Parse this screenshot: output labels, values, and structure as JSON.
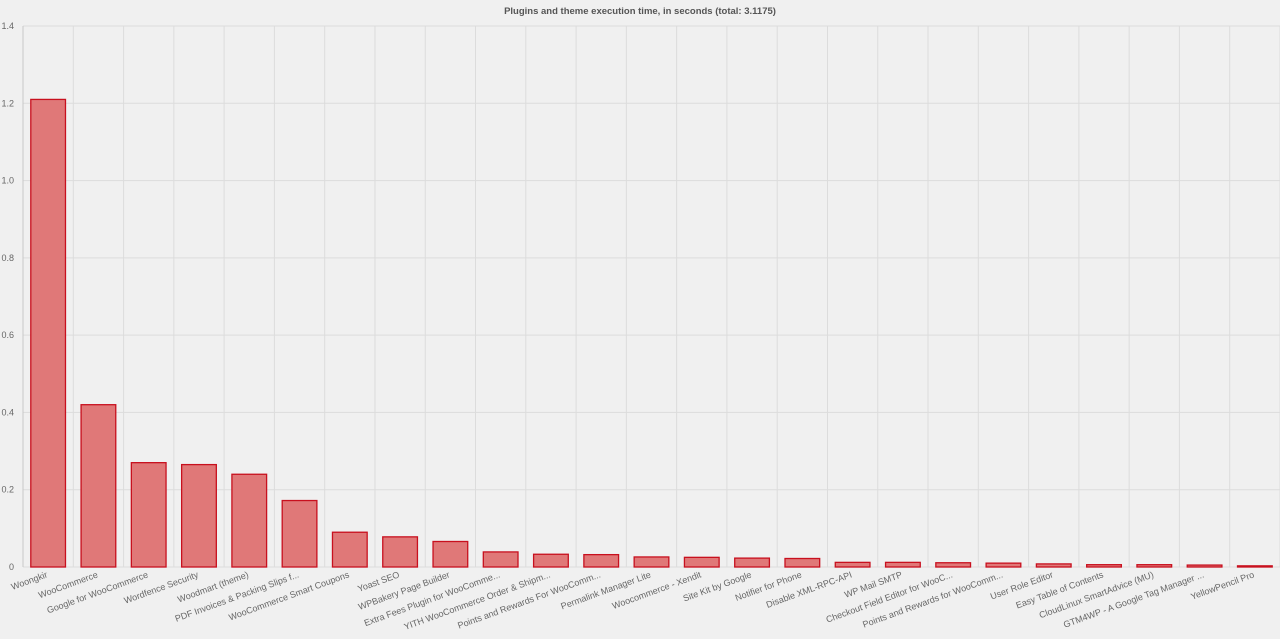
{
  "chart_data": {
    "type": "bar",
    "title": "Plugins and theme execution time, in seconds (total: 3.1175)",
    "xlabel": "",
    "ylabel": "",
    "ylim": [
      0,
      1.4
    ],
    "yticks": [
      "0",
      "0.2",
      "0.4",
      "0.6",
      "0.8",
      "1.0",
      "1.2",
      "1.4"
    ],
    "grid": true,
    "legend": "none",
    "categories": [
      "Woongkir",
      "WooCommerce",
      "Google for WooCommerce",
      "Wordfence Security",
      "Woodmart (theme)",
      "PDF Invoices & Packing Slips f...",
      "WooCommerce Smart Coupons",
      "Yoast SEO",
      "WPBakery Page Builder",
      "Extra Fees Plugin for WooComme...",
      "YITH WooCommerce Order & Shipm...",
      "Points and Rewards For WooComm...",
      "Permalink Manager Lite",
      "Woocommerce - Xendit",
      "Site Kit by Google",
      "Notifier for Phone",
      "Disable XML-RPC-API",
      "WP Mail SMTP",
      "Checkout Field Editor for WooC...",
      "Points and Rewards for WooComm...",
      "User Role Editor",
      "Easy Table of Contents",
      "CloudLinux SmartAdvice (MU)",
      "GTM4WP - A Google Tag Manager ...",
      "YellowPencil Pro"
    ],
    "values": [
      1.21,
      0.42,
      0.27,
      0.265,
      0.24,
      0.172,
      0.09,
      0.078,
      0.066,
      0.039,
      0.033,
      0.032,
      0.026,
      0.025,
      0.023,
      0.022,
      0.012,
      0.012,
      0.011,
      0.01,
      0.008,
      0.006,
      0.006,
      0.005,
      0.003
    ],
    "colors": {
      "bar_fill": "#e07878",
      "bar_stroke": "#c8101e",
      "grid": "#dcdcdc",
      "background": "#f0f0f0"
    }
  }
}
